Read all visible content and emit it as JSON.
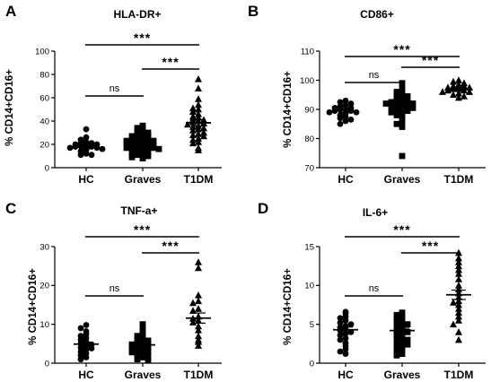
{
  "chart_data": [
    {
      "type": "scatter",
      "panel_label": "A",
      "title": "HLA-DR+",
      "ylabel": "% CD14+CD16+",
      "ylim": [
        0,
        100
      ],
      "yticks": [
        0,
        20,
        40,
        60,
        80,
        100
      ],
      "categories": [
        "HC",
        "Graves",
        "T1DM"
      ],
      "summary": {
        "mean": [
          17.5,
          21,
          38.5
        ],
        "sem": [
          1.2,
          1.1,
          2.8
        ]
      },
      "comparisons": [
        {
          "from": "HC",
          "to": "Graves",
          "label": "ns"
        },
        {
          "from": "Graves",
          "to": "T1DM",
          "label": "***"
        },
        {
          "from": "HC",
          "to": "T1DM",
          "label": "***"
        }
      ],
      "series": [
        {
          "category": "HC",
          "marker": "circle",
          "values": [
            33,
            26,
            24,
            22,
            21,
            21,
            20,
            20,
            19,
            19,
            18,
            18,
            17,
            17,
            16,
            16,
            15,
            14,
            12,
            11,
            11
          ]
        },
        {
          "category": "Graves",
          "marker": "square",
          "values": [
            36,
            34,
            33,
            31,
            30,
            29,
            28,
            27,
            27,
            26,
            25,
            25,
            24,
            23,
            23,
            22,
            22,
            21,
            21,
            20,
            20,
            19,
            19,
            18,
            18,
            17,
            17,
            16,
            16,
            15,
            15,
            14,
            13,
            12,
            11,
            10,
            9,
            8
          ]
        },
        {
          "category": "T1DM",
          "marker": "triangle",
          "values": [
            76,
            68,
            59,
            54,
            51,
            50,
            48,
            46,
            44,
            43,
            42,
            41,
            40,
            39,
            38,
            37,
            36,
            35,
            34,
            33,
            32,
            30,
            29,
            28,
            27,
            25,
            24,
            22,
            21,
            17,
            15
          ]
        }
      ]
    },
    {
      "type": "scatter",
      "panel_label": "B",
      "title": "CD86+",
      "ylabel": "% CD14+CD16+",
      "ylim": [
        70,
        110
      ],
      "yticks": [
        70,
        80,
        90,
        100,
        110
      ],
      "categories": [
        "HC",
        "Graves",
        "T1DM"
      ],
      "summary": {
        "mean": [
          89.5,
          91.5,
          97
        ],
        "sem": [
          0.6,
          0.7,
          0.4
        ]
      },
      "comparisons": [
        {
          "from": "HC",
          "to": "Graves",
          "label": "ns"
        },
        {
          "from": "Graves",
          "to": "T1DM",
          "label": "***"
        },
        {
          "from": "HC",
          "to": "T1DM",
          "label": "***"
        }
      ],
      "series": [
        {
          "category": "HC",
          "marker": "circle",
          "values": [
            93,
            92.5,
            92,
            91.5,
            91,
            90.5,
            90.5,
            90,
            90,
            89.5,
            89.5,
            89,
            89,
            88.5,
            88,
            87.5,
            87,
            86.5,
            86,
            85
          ]
        },
        {
          "category": "Graves",
          "marker": "square",
          "values": [
            99,
            97,
            96,
            95.5,
            95,
            94.5,
            94,
            93.5,
            93.5,
            93,
            93,
            92.5,
            92.5,
            92,
            92,
            91.5,
            91.5,
            91,
            91,
            90.5,
            90,
            90,
            89.5,
            89,
            88.5,
            88,
            87.5,
            86,
            85,
            84,
            74
          ]
        },
        {
          "category": "T1DM",
          "marker": "triangle",
          "values": [
            100,
            99.5,
            99,
            98.5,
            98,
            98,
            97.5,
            97.5,
            97,
            97,
            96.5,
            96.5,
            96,
            96,
            95.5,
            95,
            94.5,
            94
          ]
        }
      ]
    },
    {
      "type": "scatter",
      "panel_label": "C",
      "title": "TNF-a+",
      "ylabel": "% CD14+CD16+",
      "ylim": [
        0,
        30
      ],
      "yticks": [
        0,
        10,
        20,
        30
      ],
      "categories": [
        "HC",
        "Graves",
        "T1DM"
      ],
      "summary": {
        "mean": [
          4.9,
          4.7,
          11.6
        ],
        "sem": [
          0.5,
          0.4,
          1.3
        ]
      },
      "comparisons": [
        {
          "from": "HC",
          "to": "Graves",
          "label": "ns"
        },
        {
          "from": "Graves",
          "to": "T1DM",
          "label": "***"
        },
        {
          "from": "HC",
          "to": "T1DM",
          "label": "***"
        }
      ],
      "series": [
        {
          "category": "HC",
          "marker": "circle",
          "values": [
            9.8,
            9,
            8.2,
            7.5,
            7,
            6.5,
            6,
            5.5,
            5,
            4.8,
            4.5,
            4,
            3.8,
            3.5,
            3,
            2.5,
            2,
            1.5,
            1
          ]
        },
        {
          "category": "Graves",
          "marker": "square",
          "values": [
            10,
            9,
            8,
            7.5,
            7,
            6.5,
            6,
            5.8,
            5.5,
            5.2,
            5,
            4.8,
            4.5,
            4.3,
            4,
            3.8,
            3.5,
            3.2,
            3,
            2.8,
            2.5,
            2,
            1.8,
            1.5,
            1,
            0.8
          ]
        },
        {
          "category": "T1DM",
          "marker": "triangle",
          "values": [
            26,
            24.5,
            17.5,
            16,
            15.5,
            14,
            13.5,
            12,
            11.5,
            11,
            10.5,
            9.5,
            8.5,
            7,
            6,
            5.5,
            4.5
          ]
        }
      ]
    },
    {
      "type": "scatter",
      "panel_label": "D",
      "title": "IL-6+",
      "ylabel": "% CD14+CD16+",
      "ylim": [
        0,
        15
      ],
      "yticks": [
        0,
        5,
        10,
        15
      ],
      "categories": [
        "HC",
        "Graves",
        "T1DM"
      ],
      "summary": {
        "mean": [
          4.3,
          4.2,
          8.8
        ],
        "sem": [
          0.35,
          0.3,
          0.6
        ]
      },
      "comparisons": [
        {
          "from": "HC",
          "to": "Graves",
          "label": "ns"
        },
        {
          "from": "Graves",
          "to": "T1DM",
          "label": "***"
        },
        {
          "from": "HC",
          "to": "T1DM",
          "label": "***"
        }
      ],
      "series": [
        {
          "category": "HC",
          "marker": "circle",
          "values": [
            6.6,
            6.4,
            6,
            5.8,
            5.5,
            5.2,
            5,
            4.8,
            4.6,
            4.4,
            4.2,
            4,
            3.8,
            3.6,
            3.2,
            3,
            2.6,
            2.2,
            1.8,
            1.5,
            1.2
          ]
        },
        {
          "category": "Graves",
          "marker": "square",
          "values": [
            6.5,
            6.2,
            6,
            5.7,
            5.5,
            5.2,
            5,
            4.8,
            4.6,
            4.4,
            4.2,
            4,
            3.8,
            3.6,
            3.4,
            3.2,
            3,
            2.8,
            2.6,
            2.4,
            2.2,
            2,
            1.8,
            1.5,
            1.2,
            1
          ]
        },
        {
          "category": "T1DM",
          "marker": "triangle",
          "values": [
            14.2,
            13.5,
            13,
            12.5,
            12,
            11.5,
            10.8,
            10,
            9.5,
            9,
            8.5,
            8,
            7.8,
            7.5,
            7,
            6.5,
            6,
            5.5,
            5,
            4,
            3
          ]
        }
      ]
    }
  ]
}
